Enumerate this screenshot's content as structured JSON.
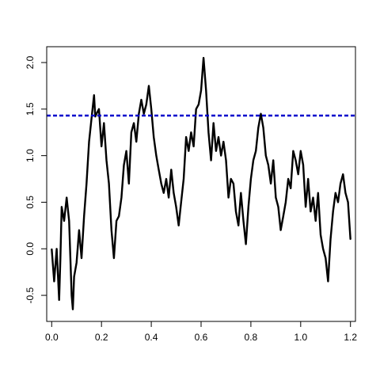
{
  "chart_data": {
    "type": "line",
    "title": "",
    "xlabel": "",
    "ylabel": "",
    "xlim": [
      -0.02,
      1.22
    ],
    "ylim": [
      -0.78,
      2.17
    ],
    "xticks": [
      0.0,
      0.2,
      0.4,
      0.6,
      0.8,
      1.0,
      1.2
    ],
    "xtick_labels": [
      "0.0",
      "0.2",
      "0.4",
      "0.6",
      "0.8",
      "1.0",
      "1.2"
    ],
    "yticks": [
      -0.5,
      0.0,
      0.5,
      1.0,
      1.5,
      2.0
    ],
    "ytick_labels": [
      "-0.5",
      "0.0",
      "0.5",
      "1.0",
      "1.5",
      "2.0"
    ],
    "grid": false,
    "series": [
      {
        "color": "#000000",
        "x": [
          0.0,
          0.01,
          0.02,
          0.03,
          0.035,
          0.04,
          0.05,
          0.06,
          0.07,
          0.08,
          0.085,
          0.09,
          0.1,
          0.11,
          0.12,
          0.13,
          0.14,
          0.15,
          0.16,
          0.17,
          0.175,
          0.18,
          0.19,
          0.2,
          0.21,
          0.22,
          0.23,
          0.24,
          0.25,
          0.26,
          0.27,
          0.28,
          0.29,
          0.3,
          0.31,
          0.32,
          0.33,
          0.34,
          0.35,
          0.36,
          0.37,
          0.38,
          0.39,
          0.4,
          0.41,
          0.42,
          0.43,
          0.44,
          0.45,
          0.46,
          0.47,
          0.48,
          0.49,
          0.5,
          0.51,
          0.52,
          0.53,
          0.54,
          0.55,
          0.56,
          0.57,
          0.58,
          0.59,
          0.6,
          0.61,
          0.62,
          0.63,
          0.64,
          0.65,
          0.66,
          0.67,
          0.68,
          0.69,
          0.7,
          0.71,
          0.72,
          0.73,
          0.74,
          0.75,
          0.76,
          0.77,
          0.78,
          0.79,
          0.8,
          0.81,
          0.82,
          0.83,
          0.84,
          0.85,
          0.86,
          0.87,
          0.88,
          0.89,
          0.9,
          0.91,
          0.92,
          0.93,
          0.94,
          0.95,
          0.96,
          0.97,
          0.98,
          0.99,
          1.0,
          1.01,
          1.02,
          1.03,
          1.04,
          1.05,
          1.06,
          1.07,
          1.08,
          1.09,
          1.1,
          1.11,
          1.12,
          1.13,
          1.14,
          1.15,
          1.16,
          1.17,
          1.18,
          1.19,
          1.2
        ],
        "y": [
          0.0,
          -0.35,
          0.0,
          -0.55,
          -0.1,
          0.45,
          0.3,
          0.55,
          0.3,
          -0.5,
          -0.65,
          -0.3,
          -0.15,
          0.2,
          -0.1,
          0.35,
          0.7,
          1.15,
          1.4,
          1.65,
          1.42,
          1.45,
          1.5,
          1.1,
          1.35,
          0.95,
          0.7,
          0.2,
          -0.1,
          0.3,
          0.35,
          0.55,
          0.9,
          1.05,
          0.7,
          1.25,
          1.35,
          1.15,
          1.45,
          1.6,
          1.45,
          1.55,
          1.75,
          1.5,
          1.2,
          1.0,
          0.85,
          0.7,
          0.6,
          0.75,
          0.55,
          0.85,
          0.6,
          0.45,
          0.25,
          0.5,
          0.75,
          1.2,
          1.05,
          1.25,
          1.1,
          1.5,
          1.55,
          1.7,
          2.05,
          1.7,
          1.25,
          0.95,
          1.35,
          1.05,
          1.2,
          1.0,
          1.15,
          0.95,
          0.55,
          0.75,
          0.7,
          0.4,
          0.25,
          0.6,
          0.3,
          0.05,
          0.45,
          0.75,
          0.95,
          1.05,
          1.3,
          1.45,
          1.3,
          1.0,
          0.9,
          0.7,
          0.95,
          0.55,
          0.45,
          0.2,
          0.35,
          0.5,
          0.75,
          0.65,
          1.05,
          0.95,
          0.8,
          1.05,
          0.9,
          0.45,
          0.75,
          0.4,
          0.55,
          0.3,
          0.6,
          0.15,
          0.0,
          -0.1,
          -0.35,
          0.1,
          0.4,
          0.6,
          0.5,
          0.7,
          0.8,
          0.6,
          0.5,
          0.1
        ],
        "line_width": 2.4
      }
    ],
    "hlines": [
      {
        "y": 1.43,
        "color": "#0000cc",
        "style": "dashed",
        "line_width": 2.4
      }
    ]
  }
}
